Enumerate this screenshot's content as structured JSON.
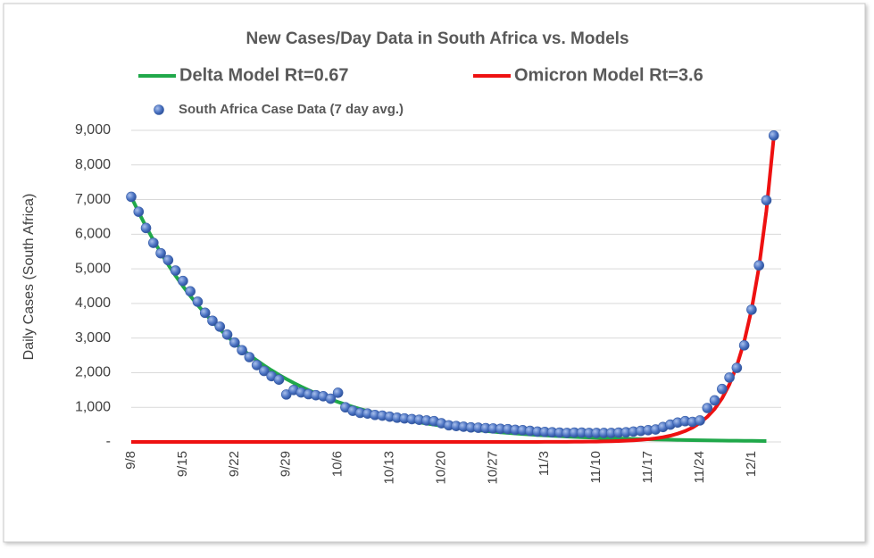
{
  "chart_data": {
    "type": "line",
    "title": "New Cases/Day Data in South Africa vs. Models",
    "ylabel": "Daily Cases (South Africa)",
    "ylim": [
      0,
      9000
    ],
    "yticks": [
      {
        "value": 0,
        "label": "-"
      },
      {
        "value": 1000,
        "label": "1,000"
      },
      {
        "value": 2000,
        "label": "2,000"
      },
      {
        "value": 3000,
        "label": "3,000"
      },
      {
        "value": 4000,
        "label": "4,000"
      },
      {
        "value": 5000,
        "label": "5,000"
      },
      {
        "value": 6000,
        "label": "6,000"
      },
      {
        "value": 7000,
        "label": "7,000"
      },
      {
        "value": 8000,
        "label": "8,000"
      },
      {
        "value": 9000,
        "label": "9,000"
      }
    ],
    "grid": true,
    "categories": [
      "9/8",
      null,
      null,
      null,
      null,
      null,
      null,
      "9/15",
      null,
      null,
      null,
      null,
      null,
      null,
      "9/22",
      null,
      null,
      null,
      null,
      null,
      null,
      "9/29",
      null,
      null,
      null,
      null,
      null,
      null,
      "10/6",
      null,
      null,
      null,
      null,
      null,
      null,
      "10/13",
      null,
      null,
      null,
      null,
      null,
      null,
      "10/20",
      null,
      null,
      null,
      null,
      null,
      null,
      "10/27",
      null,
      null,
      null,
      null,
      null,
      null,
      "11/3",
      null,
      null,
      null,
      null,
      null,
      null,
      "11/10",
      null,
      null,
      null,
      null,
      null,
      null,
      "11/17",
      null,
      null,
      null,
      null,
      null,
      null,
      "11/24",
      null,
      null,
      null,
      null,
      null,
      null,
      "12/1",
      null,
      null,
      null,
      null
    ],
    "series": [
      {
        "name": "Delta Model Rt=0.67",
        "type": "line",
        "color": "#20a84a",
        "values": [
          7080,
          6636,
          6220,
          5830,
          5465,
          5122,
          4801,
          4500,
          4218,
          3953,
          3705,
          3473,
          3255,
          3051,
          2860,
          2681,
          2513,
          2355,
          2207,
          2069,
          1939,
          1818,
          1704,
          1597,
          1497,
          1403,
          1315,
          1233,
          1155,
          1083,
          1015,
          951,
          892,
          836,
          783,
          734,
          688,
          645,
          605,
          567,
          531,
          498,
          467,
          437,
          410,
          384,
          360,
          338,
          316,
          297,
          278,
          261,
          244,
          229,
          215,
          201,
          189,
          177,
          166,
          155,
          145,
          136,
          128,
          120,
          112,
          105,
          99,
          93,
          87,
          81,
          76,
          71,
          67,
          63,
          59,
          55,
          52,
          49,
          46,
          43,
          40,
          37,
          35,
          33,
          31,
          29,
          27,
          null,
          null
        ]
      },
      {
        "name": "Omicron Model Rt=3.6",
        "type": "line",
        "color": "#ee1111",
        "values": [
          0,
          0,
          0,
          0,
          0,
          0,
          0,
          0,
          0,
          0,
          0,
          0,
          0,
          0,
          0,
          0,
          0,
          0,
          0,
          0,
          0,
          0,
          0,
          0,
          0,
          0,
          0,
          0,
          0,
          0,
          0,
          0,
          0,
          0,
          0,
          0,
          0,
          0,
          0,
          0,
          0,
          0,
          0,
          0,
          0,
          0,
          0,
          0,
          0,
          0,
          0,
          0,
          0,
          0,
          0,
          1,
          2,
          2,
          3,
          4,
          5,
          7,
          9,
          11,
          15,
          20,
          26,
          34,
          45,
          60,
          79,
          104,
          137,
          180,
          240,
          315,
          415,
          550,
          725,
          955,
          1260,
          1665,
          2200,
          2900,
          3830,
          5050,
          6670,
          8800,
          null
        ]
      },
      {
        "name": "South Africa Case Data (7 day avg.)",
        "type": "scatter",
        "color": "#4a72c2",
        "values": [
          7080,
          6650,
          6180,
          5750,
          5450,
          5250,
          4950,
          4650,
          4350,
          4050,
          3730,
          3500,
          3330,
          3100,
          2870,
          2650,
          2450,
          2220,
          2050,
          1900,
          1800,
          1370,
          1500,
          1430,
          1380,
          1350,
          1320,
          1250,
          1420,
          1000,
          900,
          840,
          820,
          780,
          760,
          730,
          700,
          680,
          660,
          640,
          620,
          600,
          540,
          480,
          460,
          440,
          420,
          410,
          400,
          390,
          380,
          370,
          350,
          340,
          320,
          300,
          290,
          280,
          270,
          260,
          270,
          270,
          260,
          260,
          260,
          260,
          270,
          280,
          300,
          320,
          340,
          360,
          430,
          500,
          560,
          600,
          580,
          620,
          980,
          1200,
          1530,
          1860,
          2140,
          2790,
          3820,
          5100,
          6980,
          8850,
          null
        ]
      }
    ]
  }
}
